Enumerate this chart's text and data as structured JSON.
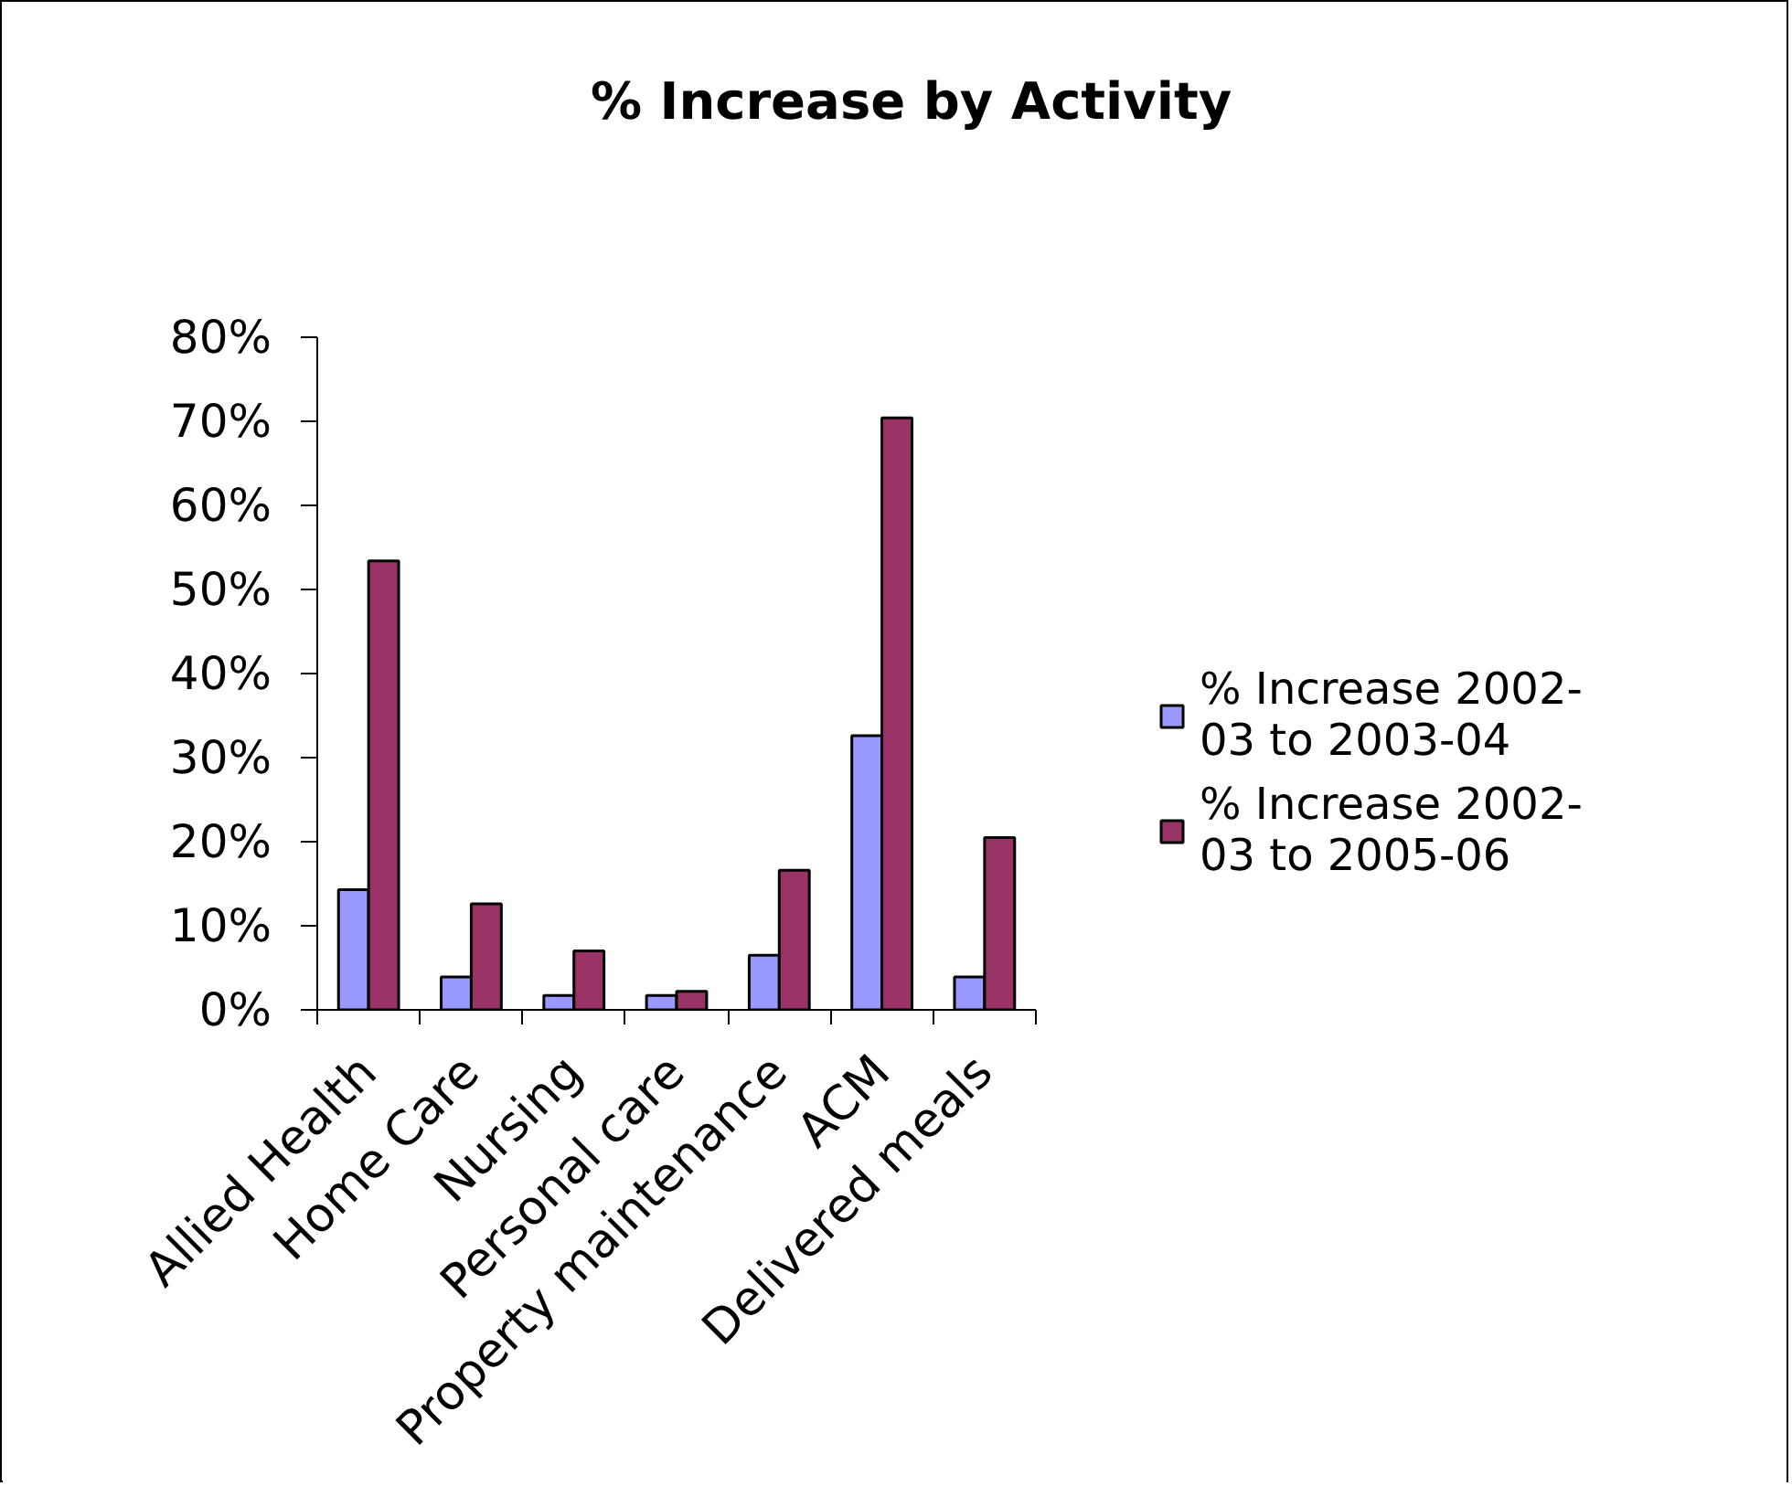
{
  "chart_data": {
    "type": "bar",
    "title": "% Increase by Activity",
    "categories": [
      "Allied Health",
      "Home Care",
      "Nursing",
      "Personal care",
      "Property maintenance",
      "ACM",
      "Delivered meals"
    ],
    "series": [
      {
        "name": "% Increase 2002-03 to 2003-04",
        "color": "#9999ff",
        "values": [
          14.3,
          3.9,
          1.7,
          1.7,
          6.5,
          32.6,
          3.9
        ]
      },
      {
        "name": "% Increase 2002-03 to 2005-06",
        "color": "#993366",
        "values": [
          53.4,
          12.6,
          7.0,
          2.2,
          16.6,
          70.4,
          20.5
        ]
      }
    ],
    "ylim": [
      0,
      80
    ],
    "yticks": [
      {
        "value": 0,
        "label": "0%"
      },
      {
        "value": 10,
        "label": "10%"
      },
      {
        "value": 20,
        "label": "20%"
      },
      {
        "value": 30,
        "label": "30%"
      },
      {
        "value": 40,
        "label": "40%"
      },
      {
        "value": 50,
        "label": "50%"
      },
      {
        "value": 60,
        "label": "60%"
      },
      {
        "value": 70,
        "label": "70%"
      },
      {
        "value": 80,
        "label": "80%"
      }
    ],
    "legend": "right"
  }
}
